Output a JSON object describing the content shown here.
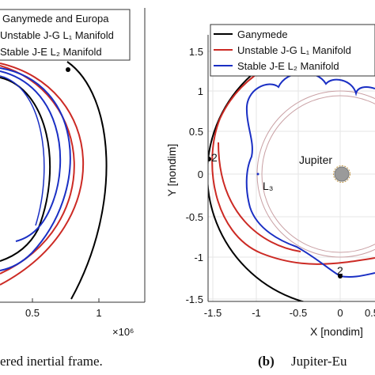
{
  "left_panel": {
    "legend": [
      "Ganymede and Europa",
      "Unstable J-G L₁ Manifold",
      "Stable J-E L₂ Manifold"
    ],
    "x_ticks": [
      "0.5",
      "1"
    ],
    "exponent": "×10⁶",
    "caption": "ered inertial frame."
  },
  "right_panel": {
    "legend": [
      "Ganymede",
      "Unstable J-G L₁ Manifold",
      "Stable J-E L₂ Manifold"
    ],
    "y_ticks": [
      "1.5",
      "1",
      "0.5",
      "0",
      "-0.5",
      "-1",
      "-1.5"
    ],
    "x_ticks": [
      "-1.5",
      "-1",
      "-0.5",
      "0",
      "0.5"
    ],
    "xlabel": "X [nondim]",
    "ylabel": "Y [nondim]",
    "label_jupiter": "Jupiter",
    "label_L3": "L₃",
    "label_point_2a": "2",
    "label_point_2b": "2",
    "caption_letter": "(b)",
    "caption_text": "Jupiter-Eu"
  },
  "colors": {
    "black": "#000000",
    "red": "#cc2a24",
    "blue": "#1a2fc4",
    "pink": "#c9a0a4"
  },
  "chart_data": [
    {
      "type": "line",
      "title": "",
      "xlabel": "",
      "ylabel": "",
      "x_tick_labels": [
        "0.5",
        "1"
      ],
      "x_exponent": "×10⁶",
      "series": [
        {
          "name": "Ganymede and Europa",
          "color": "#000000"
        },
        {
          "name": "Unstable J-G L₁ Manifold",
          "color": "#cc2a24"
        },
        {
          "name": "Stable J-E L₂ Manifold",
          "color": "#1a2fc4"
        }
      ]
    },
    {
      "type": "line",
      "title": "",
      "xlabel": "X [nondim]",
      "ylabel": "Y [nondim]",
      "xlim": [
        -1.6,
        0.55
      ],
      "ylim": [
        -1.6,
        1.6
      ],
      "grid": true,
      "series": [
        {
          "name": "Ganymede",
          "color": "#000000",
          "radius": 1.6
        },
        {
          "name": "Unstable J-G L₁ Manifold",
          "color": "#cc2a24",
          "radius_range": [
            1.35,
            1.53
          ]
        },
        {
          "name": "Stable J-E L₂ Manifold",
          "color": "#1a2fc4"
        }
      ],
      "annotations": [
        {
          "text": "Jupiter",
          "x": 0,
          "y": 0
        },
        {
          "text": "L₃",
          "x": -1.0,
          "y": -0.03
        },
        {
          "text": "2",
          "x": -1.6,
          "y": 0.15
        },
        {
          "text": "2",
          "x": 0.0,
          "y": -1.22
        }
      ]
    }
  ]
}
